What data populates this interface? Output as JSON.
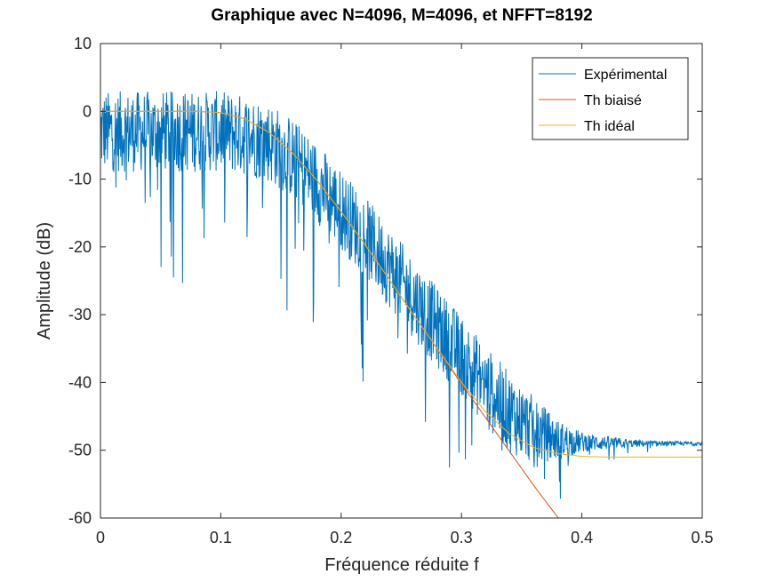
{
  "chart_data": {
    "type": "line",
    "title": "Graphique avec N=4096, M=4096, et NFFT=8192",
    "xlabel": "Fréquence réduite f",
    "ylabel": "Amplitude (dB)",
    "xlim": [
      0,
      0.5
    ],
    "ylim": [
      -60,
      10
    ],
    "xticks": [
      0,
      0.1,
      0.2,
      0.3,
      0.4,
      0.5
    ],
    "xtick_labels": [
      "0",
      "0.1",
      "0.2",
      "0.3",
      "0.4",
      "0.5"
    ],
    "yticks": [
      -60,
      -50,
      -40,
      -30,
      -20,
      -10,
      0,
      10
    ],
    "ytick_labels": [
      "-60",
      "-50",
      "-40",
      "-30",
      "-20",
      "-10",
      "0",
      "10"
    ],
    "grid": false,
    "legend_position": "top-right",
    "series": [
      {
        "name": "Expérimental",
        "color": "#0072BD",
        "x": [
          0,
          0.02,
          0.04,
          0.06,
          0.08,
          0.1,
          0.12,
          0.14,
          0.16,
          0.18,
          0.2,
          0.22,
          0.24,
          0.26,
          0.28,
          0.3,
          0.32,
          0.34,
          0.36,
          0.38,
          0.4,
          0.42,
          0.44,
          0.46,
          0.48,
          0.5
        ],
        "y": [
          -3,
          -3,
          -3,
          -3,
          -3,
          -3,
          -3.5,
          -4.5,
          -7,
          -10.5,
          -14.5,
          -18.5,
          -23,
          -27.5,
          -32,
          -36,
          -40.5,
          -44.5,
          -47,
          -48.5,
          -48.8,
          -48.9,
          -49,
          -49,
          -49,
          -49
        ],
        "noise": [
          6,
          6,
          6,
          6,
          6,
          6,
          6,
          6,
          6,
          6,
          6,
          6,
          6,
          6,
          6,
          6,
          6,
          6,
          5,
          3,
          1.5,
          1,
          0.6,
          0.4,
          0.3,
          0.3
        ]
      },
      {
        "name": "Th biaisé",
        "color": "#D95319",
        "x": [
          0,
          0.02,
          0.04,
          0.06,
          0.08,
          0.1,
          0.12,
          0.14,
          0.16,
          0.18,
          0.2,
          0.22,
          0.24,
          0.26,
          0.28,
          0.3,
          0.32,
          0.34,
          0.36,
          0.38,
          0.385
        ],
        "y": [
          0,
          0,
          0,
          0,
          0,
          -0.2,
          -1.1,
          -3.1,
          -6.2,
          -10.2,
          -14.8,
          -19.7,
          -24.8,
          -30.0,
          -35.1,
          -40.2,
          -45.2,
          -50.2,
          -55.2,
          -59.9,
          -61
        ]
      },
      {
        "name": "Th idéal",
        "color": "#EDB120",
        "x": [
          0,
          0.02,
          0.04,
          0.06,
          0.08,
          0.1,
          0.12,
          0.14,
          0.16,
          0.18,
          0.2,
          0.22,
          0.24,
          0.26,
          0.28,
          0.3,
          0.32,
          0.34,
          0.36,
          0.38,
          0.4,
          0.42,
          0.44,
          0.46,
          0.48,
          0.5
        ],
        "y": [
          0,
          0,
          0,
          0,
          0,
          -0.2,
          -1.1,
          -3.1,
          -6.2,
          -10.2,
          -14.8,
          -19.7,
          -24.8,
          -30.0,
          -35.0,
          -40.0,
          -44.3,
          -47.6,
          -49.6,
          -50.5,
          -50.9,
          -51.0,
          -51.0,
          -51.0,
          -51.0,
          -51.0
        ]
      }
    ]
  }
}
